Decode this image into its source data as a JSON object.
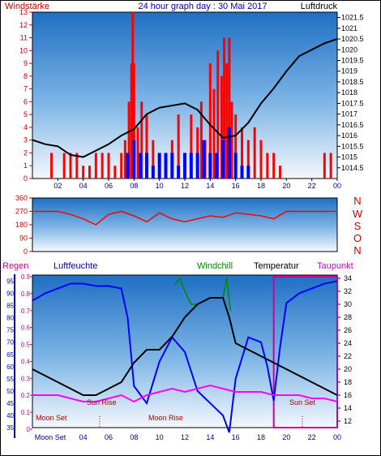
{
  "header": {
    "left_label": "Windstärke",
    "title": "24 hour graph day : 30 Mai 2017",
    "right_label": "Luftdruck"
  },
  "direction_letters": [
    "N",
    "W",
    "S",
    "O",
    "N"
  ],
  "lower_header": {
    "regen": "Regen",
    "luftfeuchte": "Luftfeuchte",
    "windchill": "Windchill",
    "temperatur": "Temperatur",
    "taupunkt": "Taupunkt"
  },
  "annotations": {
    "moon_set_1": "Moon Set",
    "sun_rise": "Sun Rise",
    "moon_rise": "Moon Rise",
    "sun_set": "Sun Set"
  },
  "colors": {
    "wind_speed": "#ff0000",
    "gust_low": "#0000ff",
    "pressure": "#000000",
    "wind_dir": "#ff0000",
    "humidity": "#0000ff",
    "temperature": "#000000",
    "windchill": "#008800",
    "dewpoint": "#ff00ff",
    "rain_box": "#cc0099",
    "left_axis": "#0000cc",
    "label_red": "#cc0000",
    "annotation": "#aa0000"
  },
  "chart_data": [
    {
      "type": "bar",
      "title": "24 hour graph day : 30 Mai 2017",
      "xlabel": "",
      "ylabel": "Windstärke",
      "y2label": "Luftdruck",
      "x_ticks": [
        "02",
        "04",
        "06",
        "08",
        "10",
        "12",
        "14",
        "16",
        "18",
        "20",
        "22",
        "00"
      ],
      "x_range": [
        0,
        24
      ],
      "ylim": [
        0,
        13
      ],
      "y_ticks": [
        0,
        1,
        2,
        3,
        4,
        5,
        6,
        7,
        8,
        9,
        10,
        11,
        12,
        13
      ],
      "y2lim": [
        1014.0,
        1021.75
      ],
      "y2_ticks": [
        "1014.5",
        "1015",
        "1015.5",
        "1016",
        "1016.5",
        "1017",
        "1017.5",
        "1018",
        "1018.5",
        "1019",
        "1019.5",
        "1020",
        "1020.5",
        "1021",
        "1021.5"
      ],
      "series": [
        {
          "name": "Windstärke",
          "kind": "bar",
          "x": [
            1.5,
            2.5,
            3.0,
            3.5,
            4.0,
            4.5,
            5.0,
            5.5,
            6.0,
            6.5,
            7.0,
            7.3,
            7.6,
            7.8,
            7.9,
            8.0,
            8.3,
            8.6,
            9.0,
            9.5,
            10.0,
            10.5,
            11.0,
            11.5,
            12.0,
            12.5,
            13.0,
            13.3,
            13.6,
            14.0,
            14.3,
            14.6,
            14.9,
            15.1,
            15.3,
            15.5,
            15.7,
            16.0,
            16.5,
            17.0,
            17.5,
            18.0,
            18.5,
            19.0,
            19.5,
            23.0,
            23.5
          ],
          "values": [
            2,
            2,
            2,
            2,
            1,
            1,
            2,
            2,
            2,
            1,
            2,
            3,
            6,
            9,
            13,
            9,
            4,
            6,
            5,
            3,
            2,
            2,
            3,
            5,
            2,
            5,
            4,
            6,
            3,
            9,
            7,
            10,
            8,
            11,
            9,
            11,
            6,
            5,
            4,
            3,
            4,
            3,
            2,
            2,
            1,
            2,
            2
          ]
        },
        {
          "name": "",
          "kind": "bar",
          "x": [
            7.5,
            8.0,
            8.5,
            9.0,
            9.5,
            10.0,
            10.5,
            11.0,
            11.5,
            12.0,
            12.5,
            13.0,
            13.5,
            14.0,
            14.5,
            15.0,
            15.5,
            16.0,
            16.5,
            17.0
          ],
          "values": [
            2,
            3,
            2,
            2,
            1,
            2,
            2,
            2,
            1,
            2,
            2,
            2,
            3,
            2,
            2,
            3,
            4,
            2,
            1,
            1
          ]
        },
        {
          "name": "Luftdruck",
          "kind": "line",
          "axis": "y2",
          "x": [
            0,
            1,
            2,
            3,
            4,
            5,
            6,
            7,
            8,
            9,
            10,
            11,
            12,
            13,
            14,
            15,
            16,
            17,
            18,
            19,
            20,
            21,
            22,
            23,
            24
          ],
          "values": [
            1015.8,
            1015.6,
            1015.5,
            1015.1,
            1015.0,
            1015.3,
            1015.6,
            1016.0,
            1016.3,
            1017.0,
            1017.3,
            1017.4,
            1017.5,
            1017.2,
            1016.5,
            1015.9,
            1016.0,
            1016.6,
            1017.5,
            1018.2,
            1019.0,
            1019.7,
            1020.0,
            1020.3,
            1020.5
          ]
        }
      ]
    },
    {
      "type": "line",
      "title": "",
      "xlabel": "",
      "ylabel": "",
      "ylim": [
        0,
        360
      ],
      "y_ticks": [
        0,
        90,
        180,
        270,
        360
      ],
      "series": [
        {
          "name": "",
          "x": [
            0,
            1,
            2,
            3,
            4,
            5,
            6,
            7,
            8,
            9,
            10,
            11,
            12,
            13,
            14,
            15,
            16,
            17,
            18,
            19,
            20,
            21,
            22,
            23,
            24
          ],
          "values": [
            270,
            270,
            270,
            250,
            220,
            180,
            250,
            270,
            240,
            200,
            260,
            220,
            200,
            220,
            240,
            230,
            260,
            250,
            240,
            220,
            270,
            270,
            270,
            270,
            270
          ]
        }
      ]
    },
    {
      "type": "line",
      "title": "",
      "xlabel": "",
      "ylabel": "Luftfeuchte",
      "x_ticks": [
        "Moon Set",
        "04",
        "06",
        "08",
        "10",
        "12",
        "14",
        "16",
        "18",
        "20",
        "22",
        "00"
      ],
      "x_range": [
        0,
        24
      ],
      "humidity_ticks": [
        35,
        40,
        45,
        50,
        55,
        60,
        65,
        70,
        75,
        80,
        85,
        90,
        95
      ],
      "humidity_lim": [
        35,
        97.5
      ],
      "rain_ticks": [
        "0",
        "0.1",
        "0.2",
        "0.3",
        "0.4",
        "0.5",
        "0.6",
        "0.7",
        "0.8",
        "0.9"
      ],
      "temp_ticks": [
        12,
        14,
        16,
        18,
        20,
        22,
        24,
        26,
        28,
        30,
        32,
        34
      ],
      "temp_lim": [
        11,
        34.5
      ],
      "series": [
        {
          "name": "Luftfeuchte",
          "x": [
            0,
            1,
            2,
            3,
            4,
            5,
            6,
            7,
            7.5,
            8,
            9,
            10,
            11,
            12,
            13,
            14,
            15,
            15.5,
            16,
            17,
            18,
            18.5,
            19,
            19.5,
            20,
            21,
            22,
            23,
            24
          ],
          "values": [
            87,
            90,
            92,
            94,
            94,
            93,
            93,
            92,
            80,
            52,
            45,
            62,
            72,
            66,
            50,
            45,
            40,
            33,
            55,
            72,
            70,
            60,
            46,
            68,
            86,
            90,
            92,
            94,
            95
          ]
        },
        {
          "name": "Temperatur",
          "x": [
            0,
            1,
            2,
            3,
            4,
            5,
            6,
            7,
            8,
            9,
            10,
            11,
            12,
            13,
            14,
            15,
            15.5,
            16,
            17,
            18,
            19,
            20,
            21,
            22,
            23,
            24
          ],
          "values": [
            20,
            19,
            18,
            17,
            16,
            16,
            17,
            18,
            21,
            23,
            23,
            25,
            28,
            30,
            31,
            31,
            28,
            24,
            23,
            22,
            21,
            20,
            19,
            18,
            17,
            16
          ]
        },
        {
          "name": "Windchill",
          "x": [
            11.2,
            11.6,
            12.0,
            12.5,
            13.0,
            14.0,
            15.0,
            15.3,
            15.6
          ],
          "values": [
            33,
            34,
            32,
            30,
            30,
            31,
            31,
            34,
            29
          ]
        },
        {
          "name": "Taupunkt",
          "x": [
            0,
            1,
            2,
            3,
            4,
            5,
            6,
            7,
            8,
            9,
            10,
            11,
            12,
            13,
            14,
            15,
            16,
            17,
            18,
            19,
            20,
            21,
            22,
            23,
            24
          ],
          "values": [
            16,
            16,
            16,
            15.5,
            15,
            15,
            15.5,
            16,
            15,
            16,
            16.5,
            17,
            16.5,
            17,
            17.5,
            17,
            16.5,
            16.5,
            16.5,
            16,
            16,
            16,
            15.5,
            15.5,
            15
          ]
        },
        {
          "name": "Regen",
          "x": [
            19,
            24
          ],
          "values": [
            0.9,
            0.9
          ]
        }
      ]
    }
  ]
}
